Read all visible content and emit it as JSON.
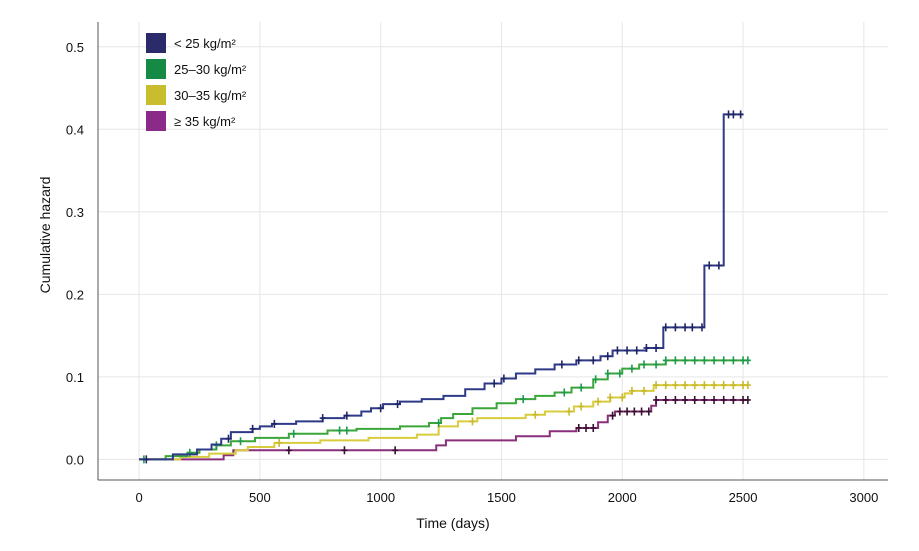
{
  "chart_data": {
    "type": "line",
    "step": true,
    "title": "",
    "xlabel": "Time (days)",
    "ylabel": "Cumulative hazard",
    "xlim": [
      -170,
      3100
    ],
    "ylim": [
      -0.025,
      0.53
    ],
    "xticks": [
      0,
      500,
      1000,
      1500,
      2000,
      2500,
      3000
    ],
    "xtick_labels": [
      "0",
      "500",
      "1000",
      "1500",
      "2000",
      "2500",
      "3000"
    ],
    "yticks": [
      0.0,
      0.1,
      0.2,
      0.3,
      0.4,
      0.5
    ],
    "ytick_labels": [
      "0.0",
      "0.1",
      "0.2",
      "0.3",
      "0.4",
      "0.5"
    ],
    "grid": true,
    "legend_position": "top-left",
    "series": [
      {
        "name": "< 25 kg/m²",
        "color": "#2e3a87",
        "censor_color": "#1f2566",
        "points": [
          [
            0,
            0
          ],
          [
            140,
            0.006
          ],
          [
            240,
            0.012
          ],
          [
            300,
            0.018
          ],
          [
            340,
            0.025
          ],
          [
            380,
            0.033
          ],
          [
            470,
            0.037
          ],
          [
            500,
            0.04
          ],
          [
            550,
            0.043
          ],
          [
            650,
            0.046
          ],
          [
            760,
            0.05
          ],
          [
            850,
            0.053
          ],
          [
            920,
            0.058
          ],
          [
            960,
            0.062
          ],
          [
            1010,
            0.067
          ],
          [
            1080,
            0.07
          ],
          [
            1170,
            0.073
          ],
          [
            1260,
            0.077
          ],
          [
            1350,
            0.085
          ],
          [
            1430,
            0.092
          ],
          [
            1500,
            0.098
          ],
          [
            1560,
            0.104
          ],
          [
            1640,
            0.109
          ],
          [
            1720,
            0.115
          ],
          [
            1810,
            0.12
          ],
          [
            1910,
            0.125
          ],
          [
            1960,
            0.132
          ],
          [
            2100,
            0.135
          ],
          [
            2170,
            0.16
          ],
          [
            2340,
            0.235
          ],
          [
            2420,
            0.418
          ],
          [
            2500,
            0.418
          ]
        ],
        "censored_x": [
          30,
          370,
          470,
          560,
          760,
          860,
          1000,
          1070,
          1470,
          1510,
          1750,
          1820,
          1880,
          1940,
          1980,
          2020,
          2060,
          2100,
          2140,
          2180,
          2220,
          2260,
          2290,
          2330,
          2360,
          2400,
          2440,
          2460,
          2490
        ]
      },
      {
        "name": "25–30 kg/m²",
        "color": "#3aa63a",
        "censor_color": "#1e9a4a",
        "points": [
          [
            0,
            0
          ],
          [
            110,
            0.004
          ],
          [
            200,
            0.008
          ],
          [
            250,
            0.012
          ],
          [
            320,
            0.017
          ],
          [
            380,
            0.022
          ],
          [
            480,
            0.026
          ],
          [
            620,
            0.031
          ],
          [
            780,
            0.035
          ],
          [
            900,
            0.037
          ],
          [
            1080,
            0.04
          ],
          [
            1200,
            0.044
          ],
          [
            1250,
            0.05
          ],
          [
            1300,
            0.055
          ],
          [
            1380,
            0.062
          ],
          [
            1480,
            0.068
          ],
          [
            1560,
            0.073
          ],
          [
            1640,
            0.077
          ],
          [
            1720,
            0.081
          ],
          [
            1790,
            0.087
          ],
          [
            1880,
            0.097
          ],
          [
            1940,
            0.104
          ],
          [
            2000,
            0.11
          ],
          [
            2070,
            0.115
          ],
          [
            2180,
            0.12
          ],
          [
            2520,
            0.12
          ]
        ],
        "censored_x": [
          20,
          210,
          320,
          420,
          640,
          830,
          860,
          1240,
          1590,
          1760,
          1830,
          1890,
          1940,
          1990,
          2040,
          2090,
          2140,
          2180,
          2220,
          2260,
          2300,
          2340,
          2380,
          2420,
          2460,
          2500,
          2520
        ]
      },
      {
        "name": "30–35 kg/m²",
        "color": "#d8cc3c",
        "censor_color": "#c9b92c",
        "points": [
          [
            0,
            0
          ],
          [
            170,
            0.003
          ],
          [
            290,
            0.007
          ],
          [
            400,
            0.011
          ],
          [
            450,
            0.015
          ],
          [
            560,
            0.02
          ],
          [
            750,
            0.023
          ],
          [
            950,
            0.026
          ],
          [
            1150,
            0.03
          ],
          [
            1240,
            0.04
          ],
          [
            1320,
            0.046
          ],
          [
            1400,
            0.05
          ],
          [
            1600,
            0.054
          ],
          [
            1680,
            0.058
          ],
          [
            1800,
            0.064
          ],
          [
            1880,
            0.07
          ],
          [
            1950,
            0.075
          ],
          [
            2010,
            0.08
          ],
          [
            2040,
            0.083
          ],
          [
            2130,
            0.09
          ],
          [
            2520,
            0.09
          ]
        ],
        "censored_x": [
          580,
          1380,
          1640,
          1780,
          1830,
          1900,
          1950,
          2000,
          2040,
          2090,
          2140,
          2180,
          2220,
          2260,
          2300,
          2340,
          2380,
          2420,
          2460,
          2500,
          2520
        ]
      },
      {
        "name": "≥ 35 kg/m²",
        "color": "#8a2f7a",
        "censor_color": "#3a1030",
        "points": [
          [
            0,
            0
          ],
          [
            350,
            0.005
          ],
          [
            390,
            0.011
          ],
          [
            1230,
            0.017
          ],
          [
            1270,
            0.023
          ],
          [
            1560,
            0.028
          ],
          [
            1700,
            0.034
          ],
          [
            1810,
            0.038
          ],
          [
            1900,
            0.045
          ],
          [
            1940,
            0.053
          ],
          [
            1970,
            0.058
          ],
          [
            2120,
            0.065
          ],
          [
            2140,
            0.072
          ],
          [
            2520,
            0.072
          ]
        ],
        "censored_x": [
          620,
          850,
          1060,
          1820,
          1850,
          1880,
          1960,
          1990,
          2020,
          2050,
          2080,
          2110,
          2140,
          2180,
          2220,
          2260,
          2300,
          2340,
          2380,
          2420,
          2460,
          2500,
          2520
        ]
      }
    ]
  },
  "legend": {
    "items": [
      {
        "label": "< 25 kg/m²",
        "color": "#2b2a6b"
      },
      {
        "label": "25–30 kg/m²",
        "color": "#158a45"
      },
      {
        "label": "30–35 kg/m²",
        "color": "#c8bd2d"
      },
      {
        "label": "≥ 35 kg/m²",
        "color": "#8b2a88"
      }
    ]
  }
}
